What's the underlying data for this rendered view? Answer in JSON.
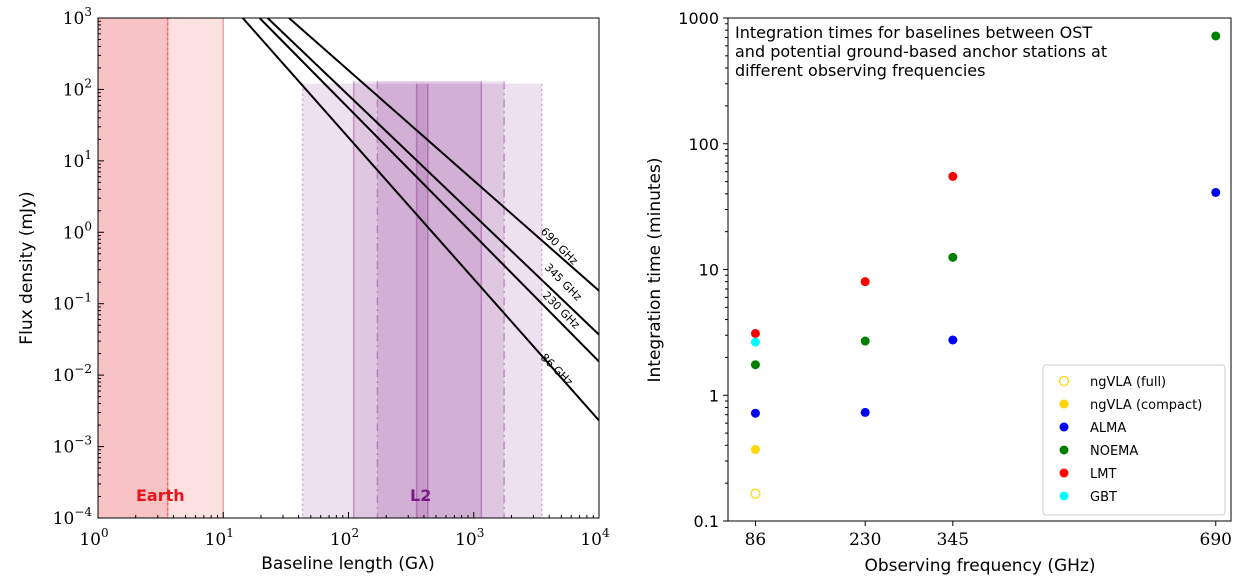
{
  "chart_data": [
    {
      "type": "line",
      "xlabel": "Baseline length (Gλ)",
      "ylabel": "Flux density (mJy)",
      "xscale": "log",
      "yscale": "log",
      "xlim": [
        1,
        10000
      ],
      "ylim": [
        0.0001,
        1000
      ],
      "x_ticks": [
        {
          "base": "10",
          "exp": "0"
        },
        {
          "base": "10",
          "exp": "1"
        },
        {
          "base": "10",
          "exp": "2"
        },
        {
          "base": "10",
          "exp": "3"
        },
        {
          "base": "10",
          "exp": "4"
        }
      ],
      "y_ticks": [
        {
          "base": "10",
          "exp": "−4"
        },
        {
          "base": "10",
          "exp": "−3"
        },
        {
          "base": "10",
          "exp": "−2"
        },
        {
          "base": "10",
          "exp": "−1"
        },
        {
          "base": "10",
          "exp": "0"
        },
        {
          "base": "10",
          "exp": "1"
        },
        {
          "base": "10",
          "exp": "2"
        },
        {
          "base": "10",
          "exp": "3"
        }
      ],
      "series": [
        {
          "name": "690 GHz",
          "x": [
            33.5,
            10000
          ],
          "y": [
            1000,
            0.152
          ]
        },
        {
          "name": "345 GHz",
          "x": [
            22.6,
            10000
          ],
          "y": [
            1000,
            0.0369
          ]
        },
        {
          "name": "230 GHz",
          "x": [
            19.5,
            10000
          ],
          "y": [
            1000,
            0.0155
          ]
        },
        {
          "name": "86 GHz",
          "x": [
            14.3,
            10000
          ],
          "y": [
            1000,
            0.00232
          ]
        }
      ],
      "regions": [
        {
          "name": "Earth",
          "color": "#e8151b",
          "bands": [
            {
              "x": [
                1,
                3.6
              ],
              "style": "dark"
            },
            {
              "x": [
                3.6,
                10
              ],
              "style": "light"
            }
          ]
        },
        {
          "name": "L2",
          "color": "#7a1a87",
          "bands": [
            {
              "x": [
                43,
                3500
              ],
              "style": "light"
            },
            {
              "x": [
                110,
                1150
              ],
              "style": "mid"
            },
            {
              "x": [
                170,
                1750
              ],
              "style": "mid"
            },
            {
              "x": [
                350,
                430
              ],
              "style": "mid"
            }
          ]
        }
      ]
    },
    {
      "type": "scatter",
      "annotation": "Integration times for baselines between OST\nand potential ground-based anchor stations at\ndifferent observing frequencies",
      "xlabel": "Observing frequency (GHz)",
      "ylabel": "Integration time (minutes)",
      "xscale": "linear",
      "yscale": "log",
      "xlim": [
        50,
        710
      ],
      "ylim": [
        0.1,
        1000
      ],
      "x_ticks": [
        "86",
        "230",
        "345",
        "690"
      ],
      "y_ticks": [
        "0.1",
        "1",
        "10",
        "100",
        "1000"
      ],
      "legend_position": "lower-right",
      "series": [
        {
          "name": "ngVLA (full)",
          "color": "#ffd700",
          "hollow": true,
          "points": [
            [
              86,
              0.165
            ]
          ]
        },
        {
          "name": "ngVLA (compact)",
          "color": "#ffd700",
          "hollow": false,
          "points": [
            [
              86,
              0.37
            ]
          ]
        },
        {
          "name": "ALMA",
          "color": "#0000ff",
          "hollow": false,
          "points": [
            [
              86,
              0.72
            ],
            [
              230,
              0.73
            ],
            [
              345,
              2.75
            ],
            [
              690,
              41
            ]
          ]
        },
        {
          "name": "NOEMA",
          "color": "#008000",
          "hollow": false,
          "points": [
            [
              86,
              1.75
            ],
            [
              230,
              2.7
            ],
            [
              345,
              12.5
            ],
            [
              690,
              720
            ]
          ]
        },
        {
          "name": "LMT",
          "color": "#ff0000",
          "hollow": false,
          "points": [
            [
              86,
              3.1
            ],
            [
              230,
              8.0
            ],
            [
              345,
              55
            ]
          ]
        },
        {
          "name": "GBT",
          "color": "#00ffff",
          "hollow": false,
          "points": [
            [
              86,
              2.65
            ]
          ]
        }
      ]
    }
  ]
}
